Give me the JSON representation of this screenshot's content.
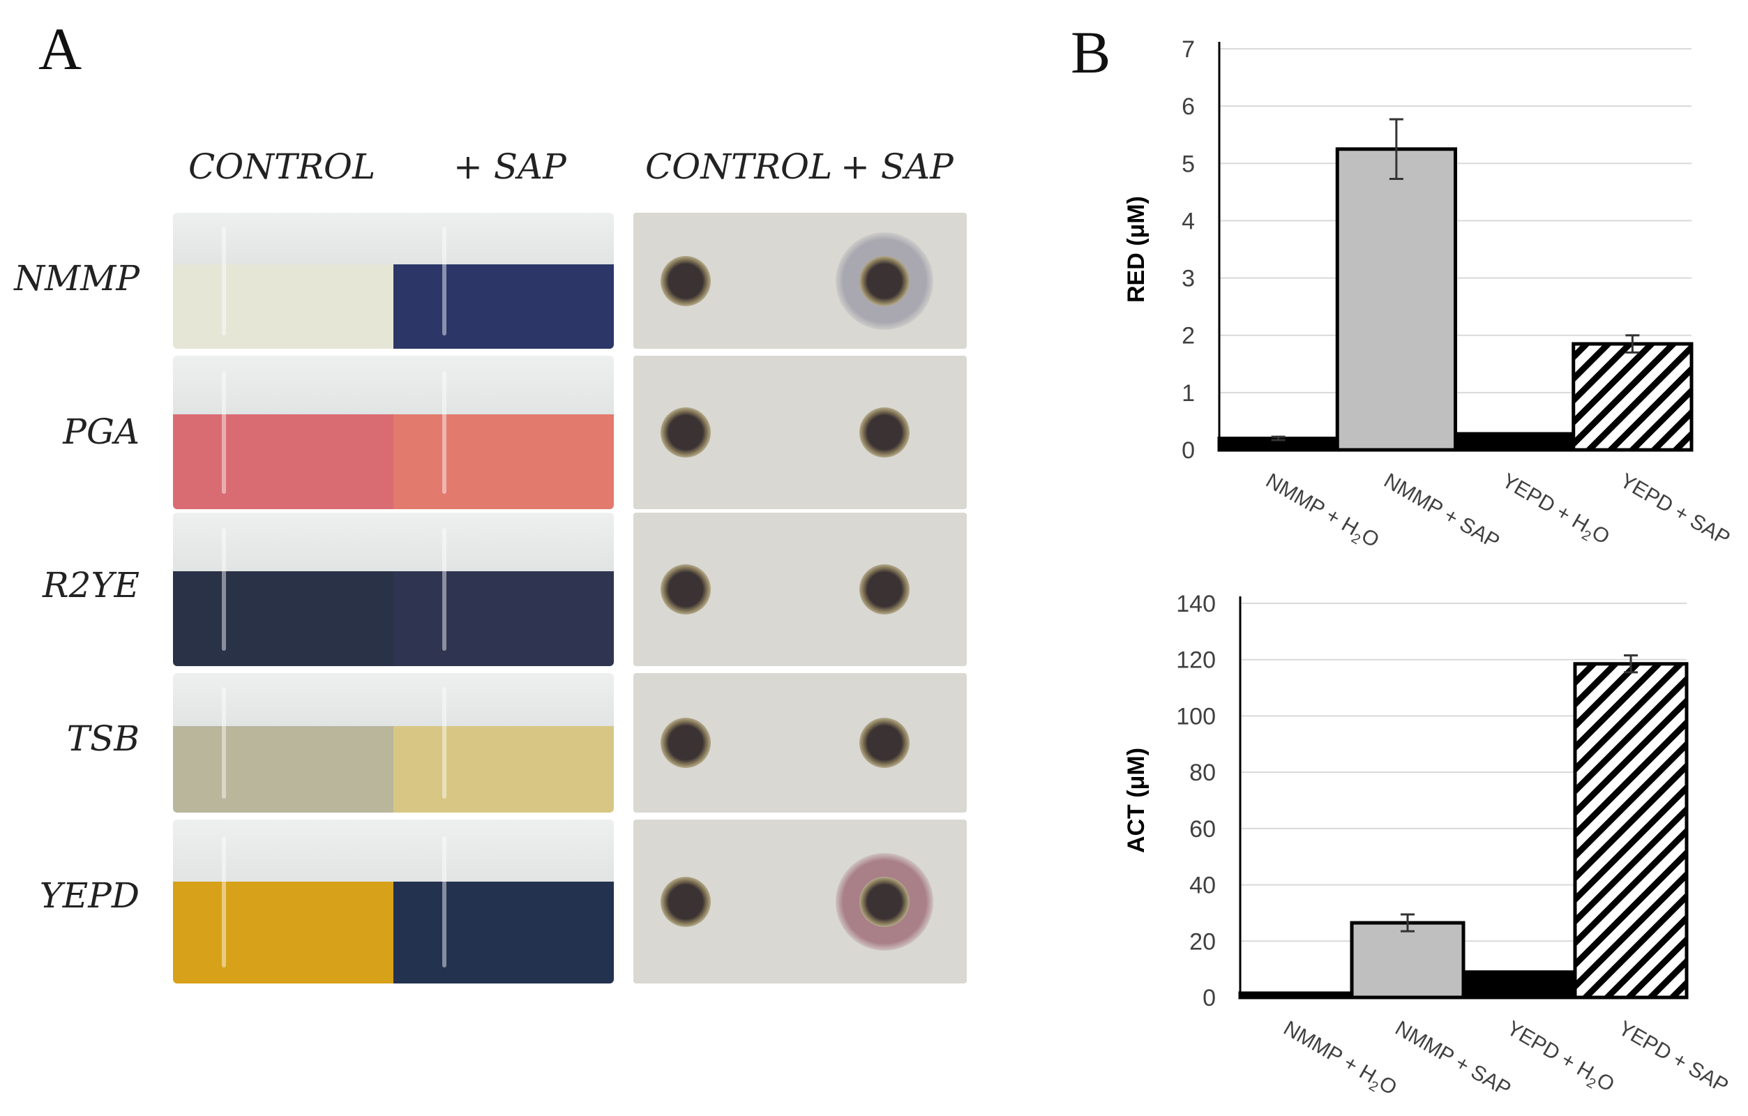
{
  "panel_a": {
    "letter": "A",
    "flask_headers": [
      "CONTROL",
      "+ SAP"
    ],
    "plate_headers": [
      "CONTROL",
      "+ SAP"
    ],
    "rows": [
      {
        "label": "NMMP",
        "control_color": "#e6e6d6",
        "sap_color": "#2c3768",
        "halo_sap": "#a9a8b0",
        "halo_sap_size": "large"
      },
      {
        "label": "PGA",
        "control_color": "#d96c72",
        "sap_color": "#e27a6e",
        "halo_sap": "",
        "halo_sap_size": "none"
      },
      {
        "label": "R2YE",
        "control_color": "#2a3247",
        "sap_color": "#2f3450",
        "halo_sap": "",
        "halo_sap_size": "none"
      },
      {
        "label": "TSB",
        "control_color": "#b9b69c",
        "sap_color": "#d8c784",
        "halo_sap": "",
        "halo_sap_size": "none"
      },
      {
        "label": "YEPD",
        "control_color": "#d7a11a",
        "sap_color": "#23324e",
        "halo_sap": "#a97f88",
        "halo_sap_size": "large"
      }
    ]
  },
  "panel_b": {
    "letter": "B"
  },
  "chart_data": [
    {
      "type": "bar",
      "title": "",
      "xlabel": "",
      "ylabel": "RED (μM)",
      "ylim": [
        0,
        7
      ],
      "yticks": [
        0,
        1,
        2,
        3,
        4,
        5,
        6,
        7
      ],
      "categories": [
        "NMMP + H2O",
        "NMMP + SAP",
        "YEPD + H2O",
        "YEPD + SAP"
      ],
      "category_labels": [
        {
          "main": "NMMP + H",
          "sub": "2",
          "tail": "O"
        },
        {
          "main": "NMMP + SAP",
          "sub": "",
          "tail": ""
        },
        {
          "main": "YEPD + H",
          "sub": "2",
          "tail": "O"
        },
        {
          "main": "YEPD + SAP",
          "sub": "",
          "tail": ""
        }
      ],
      "values": [
        0.2,
        5.25,
        0.28,
        1.85
      ],
      "errors": [
        0.03,
        0.52,
        0.0,
        0.15
      ],
      "fills": [
        "#000000",
        "#bfbfbf",
        "#000000",
        "hatch"
      ],
      "grid": true
    },
    {
      "type": "bar",
      "title": "",
      "xlabel": "",
      "ylabel": "ACT (μM)",
      "ylim": [
        0,
        140
      ],
      "yticks": [
        0,
        20,
        40,
        60,
        80,
        100,
        120,
        140
      ],
      "categories": [
        "NMMP + H2O",
        "NMMP + SAP",
        "YEPD + H2O",
        "YEPD + SAP"
      ],
      "category_labels": [
        {
          "main": "NMMP + H",
          "sub": "2",
          "tail": "O"
        },
        {
          "main": "NMMP + SAP",
          "sub": "",
          "tail": ""
        },
        {
          "main": "YEPD + H",
          "sub": "2",
          "tail": "O"
        },
        {
          "main": "YEPD + SAP",
          "sub": "",
          "tail": ""
        }
      ],
      "values": [
        1.5,
        26.5,
        9,
        118.5
      ],
      "errors": [
        0.0,
        3,
        0.0,
        3
      ],
      "fills": [
        "#000000",
        "#bfbfbf",
        "#000000",
        "hatch"
      ],
      "grid": true
    }
  ]
}
